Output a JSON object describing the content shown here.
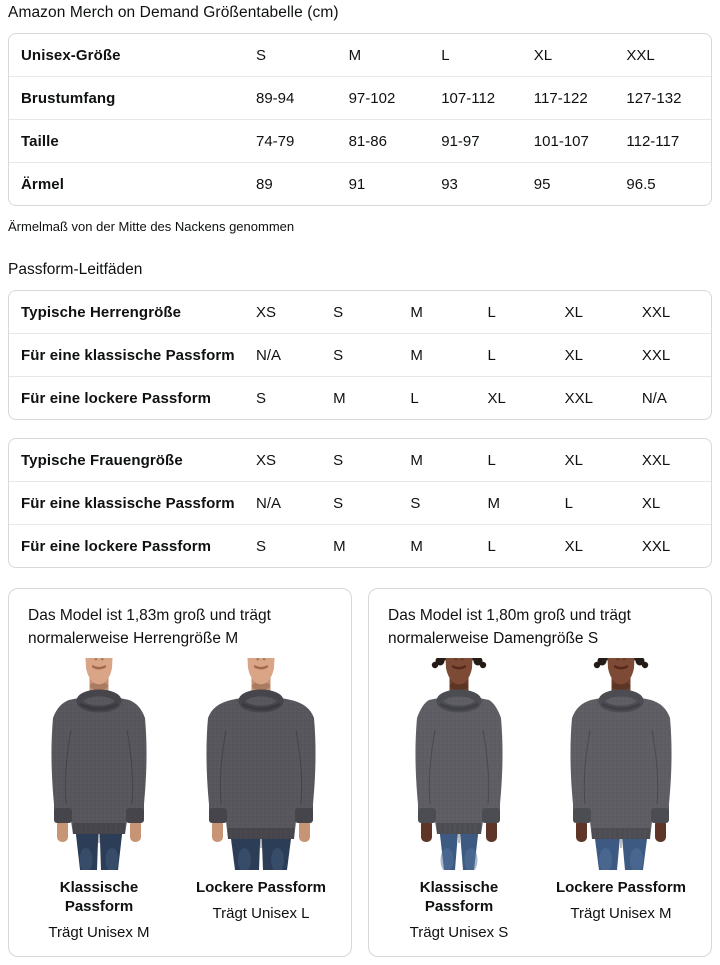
{
  "page_title": "Amazon Merch on Demand Größentabelle (cm)",
  "unisex_table": {
    "rows": [
      {
        "label": "Unisex-Größe",
        "values": [
          "S",
          "M",
          "L",
          "XL",
          "XXL"
        ]
      },
      {
        "label": "Brustumfang",
        "values": [
          "89-94",
          "97-102",
          "107-112",
          "117-122",
          "127-132"
        ]
      },
      {
        "label": "Taille",
        "values": [
          "74-79",
          "81-86",
          "91-97",
          "101-107",
          "112-117"
        ]
      },
      {
        "label": "Ärmel",
        "values": [
          "89",
          "91",
          "93",
          "95",
          "96.5"
        ]
      }
    ],
    "footnote": "Ärmelmaß von der Mitte des Nackens genommen"
  },
  "fit_guides": {
    "heading": "Passform-Leitfäden",
    "tables": [
      {
        "id": "men",
        "rows": [
          {
            "label": "Typische Herrengröße",
            "values": [
              "XS",
              "S",
              "M",
              "L",
              "XL",
              "XXL"
            ]
          },
          {
            "label": "Für eine klassische Passform",
            "values": [
              "N/A",
              "S",
              "M",
              "L",
              "XL",
              "XXL"
            ]
          },
          {
            "label": "Für eine lockere Passform",
            "values": [
              "S",
              "M",
              "L",
              "XL",
              "XXL",
              "N/A"
            ]
          }
        ]
      },
      {
        "id": "women",
        "rows": [
          {
            "label": "Typische Frauengröße",
            "values": [
              "XS",
              "S",
              "M",
              "L",
              "XL",
              "XXL"
            ]
          },
          {
            "label": "Für eine klassische Passform",
            "values": [
              "N/A",
              "S",
              "S",
              "M",
              "L",
              "XL"
            ]
          },
          {
            "label": "Für eine lockere Passform",
            "values": [
              "S",
              "M",
              "M",
              "L",
              "XL",
              "XXL"
            ]
          }
        ]
      }
    ]
  },
  "model_cards": [
    {
      "model": "male",
      "description": "Das Model ist 1,83m groß und trägt normalerweise Herrengröße M",
      "photos": [
        {
          "fit": "classic",
          "fit_label": "Klassische Passform",
          "size_label": "Trägt Unisex M"
        },
        {
          "fit": "loose",
          "fit_label": "Lockere Passform",
          "size_label": "Trägt Unisex L"
        }
      ]
    },
    {
      "model": "female",
      "description": "Das Model ist 1,80m groß und trägt normalerweise Damengröße S",
      "photos": [
        {
          "fit": "classic",
          "fit_label": "Klassische Passform",
          "size_label": "Trägt Unisex S"
        },
        {
          "fit": "loose",
          "fit_label": "Lockere Passform",
          "size_label": "Trägt Unisex M"
        }
      ]
    }
  ],
  "colors": {
    "text": "#0f1111",
    "table_border": "#d5d9d9",
    "row_divider": "#e7e7e7",
    "sweatshirt_gray_men": "#56565c",
    "sweatshirt_gray_women": "#5d5d63",
    "jeans_blue_men": "#2c3e57",
    "jeans_blue_women": "#3d5a82",
    "skin_light": "#d9a586",
    "skin_dark": "#7d4a35"
  }
}
